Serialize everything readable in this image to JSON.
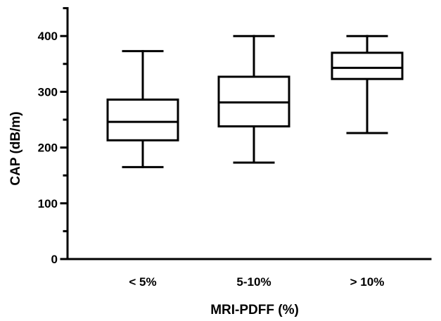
{
  "chart_data": {
    "type": "box",
    "title": "",
    "xlabel": "MRI-PDFF (%)",
    "ylabel": "CAP (dB/m)",
    "ylim": [
      0,
      450
    ],
    "yticks": [
      0,
      100,
      200,
      300,
      400
    ],
    "grid": false,
    "categories": [
      "< 5%",
      "5-10%",
      "> 10%"
    ],
    "boxes": [
      {
        "category": "< 5%",
        "min": 165,
        "q1": 213,
        "median": 246,
        "q3": 286,
        "max": 373
      },
      {
        "category": "5-10%",
        "min": 173,
        "q1": 238,
        "median": 281,
        "q3": 327,
        "max": 400
      },
      {
        "category": "> 10%",
        "min": 226,
        "q1": 323,
        "median": 343,
        "q3": 370,
        "max": 400
      }
    ]
  }
}
